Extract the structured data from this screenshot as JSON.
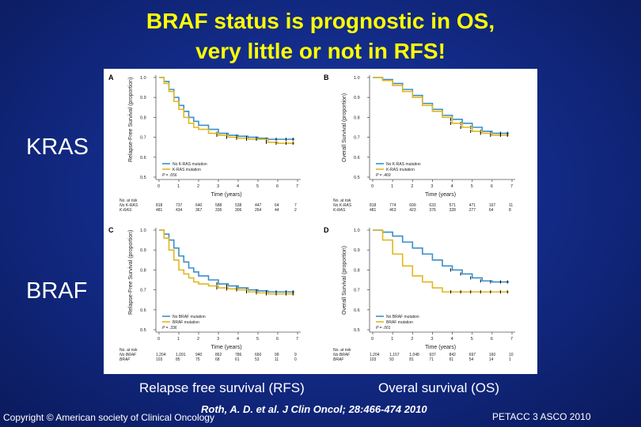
{
  "slide": {
    "title_line1": "BRAF status is prognostic in OS,",
    "title_line2": "very little or not in RFS!",
    "row_label_kras": "KRAS",
    "row_label_braf": "BRAF",
    "caption_rfs": "Relapse free survival (RFS)",
    "caption_os": "Overal survival (OS)",
    "citation": "Roth, A. D. et al. J Clin Oncol; 28:466-474 2010",
    "copyright": "Copyright © American society of Clinical Oncology",
    "footer_right": "PETACC 3 ASCO 2010",
    "colors": {
      "background": "#132c8a",
      "title": "#ffff00",
      "wild_type_curve": "#3a8fc8",
      "mutation_curve": "#e0b820",
      "censor_marks": "#000000"
    }
  },
  "chart_data": [
    {
      "panel": "A",
      "type": "line",
      "xlabel": "Time (years)",
      "ylabel": "Relapse-Free Survival (proportion)",
      "xlim": [
        0,
        7
      ],
      "ylim": [
        0.5,
        1.0
      ],
      "x_ticks": [
        "0",
        "1",
        "2",
        "3",
        "4",
        "5",
        "6",
        "7"
      ],
      "y_ticks": [
        "0.5",
        "0.6",
        "0.7",
        "0.8",
        "0.9",
        "1.0"
      ],
      "p_value": "P = .656",
      "series": [
        {
          "name": "No K-RAS mutation",
          "color": "#3a8fc8",
          "x": [
            0,
            0.25,
            0.5,
            0.75,
            1.0,
            1.25,
            1.5,
            1.75,
            2.0,
            2.5,
            3.0,
            3.5,
            4.0,
            4.5,
            5.0,
            5.5,
            6.0,
            6.5,
            6.85
          ],
          "y": [
            1.0,
            0.98,
            0.94,
            0.9,
            0.86,
            0.83,
            0.8,
            0.78,
            0.76,
            0.74,
            0.72,
            0.71,
            0.705,
            0.7,
            0.695,
            0.69,
            0.69,
            0.69,
            0.69
          ]
        },
        {
          "name": "K-RAS mutation",
          "color": "#e0b820",
          "x": [
            0,
            0.25,
            0.5,
            0.75,
            1.0,
            1.25,
            1.5,
            1.75,
            2.0,
            2.5,
            3.0,
            3.5,
            4.0,
            4.5,
            5.0,
            5.5,
            6.0,
            6.5,
            6.85
          ],
          "y": [
            1.0,
            0.97,
            0.93,
            0.88,
            0.84,
            0.8,
            0.77,
            0.75,
            0.74,
            0.72,
            0.71,
            0.7,
            0.695,
            0.69,
            0.69,
            0.675,
            0.67,
            0.67,
            0.67
          ]
        }
      ],
      "at_risk": {
        "header": "No. at risk",
        "rows": [
          {
            "label": "No K-RAS",
            "values": [
              "818",
              "737",
              "640",
              "588",
              "538",
              "447",
              "64",
              "7"
            ]
          },
          {
            "label": "K-RAS",
            "values": [
              "481",
              "434",
              "367",
              "336",
              "306",
              "264",
              "44",
              "2"
            ]
          }
        ]
      }
    },
    {
      "panel": "B",
      "type": "line",
      "xlabel": "Time (years)",
      "ylabel": "Overall Survival (proportion)",
      "xlim": [
        0,
        7
      ],
      "ylim": [
        0.5,
        1.0
      ],
      "x_ticks": [
        "0",
        "1",
        "2",
        "3",
        "4",
        "5",
        "6",
        "7"
      ],
      "y_ticks": [
        "0.5",
        "0.6",
        "0.7",
        "0.8",
        "0.9",
        "1.0"
      ],
      "p_value": "P = .469",
      "series": [
        {
          "name": "No K-RAS mutation",
          "color": "#3a8fc8",
          "x": [
            0,
            0.5,
            1.0,
            1.5,
            2.0,
            2.5,
            3.0,
            3.5,
            4.0,
            4.5,
            5.0,
            5.5,
            6.0,
            6.5,
            6.85
          ],
          "y": [
            1.0,
            0.99,
            0.97,
            0.94,
            0.91,
            0.87,
            0.84,
            0.81,
            0.79,
            0.77,
            0.75,
            0.73,
            0.72,
            0.72,
            0.72
          ]
        },
        {
          "name": "K-RAS mutation",
          "color": "#e0b820",
          "x": [
            0,
            0.5,
            1.0,
            1.5,
            2.0,
            2.5,
            3.0,
            3.5,
            4.0,
            4.5,
            5.0,
            5.5,
            6.0,
            6.5,
            6.85
          ],
          "y": [
            1.0,
            0.985,
            0.96,
            0.93,
            0.9,
            0.86,
            0.83,
            0.8,
            0.77,
            0.75,
            0.73,
            0.72,
            0.71,
            0.71,
            0.71
          ]
        }
      ],
      "at_risk": {
        "header": "No. at risk",
        "rows": [
          {
            "label": "No K-RAS",
            "values": [
              "818",
              "774",
              "699",
              "633",
              "571",
              "471",
              "167",
              "11"
            ]
          },
          {
            "label": "K-RAS",
            "values": [
              "481",
              "463",
              "423",
              "376",
              "328",
              "277",
              "64",
              "8"
            ]
          }
        ]
      }
    },
    {
      "panel": "C",
      "type": "line",
      "xlabel": "Time (years)",
      "ylabel": "Relapse-Free Survival (proportion)",
      "xlim": [
        0,
        7
      ],
      "ylim": [
        0.5,
        1.0
      ],
      "x_ticks": [
        "0",
        "1",
        "2",
        "3",
        "4",
        "5",
        "6",
        "7"
      ],
      "y_ticks": [
        "0.5",
        "0.6",
        "0.7",
        "0.8",
        "0.9",
        "1.0"
      ],
      "p_value": "P = .336",
      "series": [
        {
          "name": "No BRAF mutation",
          "color": "#3a8fc8",
          "x": [
            0,
            0.25,
            0.5,
            0.75,
            1.0,
            1.25,
            1.5,
            1.75,
            2.0,
            2.5,
            3.0,
            3.5,
            4.0,
            4.5,
            5.0,
            5.5,
            6.0,
            6.5,
            6.85
          ],
          "y": [
            1.0,
            0.98,
            0.95,
            0.91,
            0.87,
            0.84,
            0.81,
            0.79,
            0.77,
            0.75,
            0.73,
            0.72,
            0.71,
            0.7,
            0.695,
            0.69,
            0.69,
            0.69,
            0.69
          ]
        },
        {
          "name": "BRAF mutation",
          "color": "#e0b820",
          "x": [
            0,
            0.25,
            0.5,
            0.75,
            1.0,
            1.25,
            1.5,
            1.75,
            2.0,
            2.5,
            3.0,
            3.5,
            4.0,
            4.5,
            5.0,
            5.5,
            6.0,
            6.5,
            6.85
          ],
          "y": [
            1.0,
            0.96,
            0.9,
            0.85,
            0.8,
            0.78,
            0.76,
            0.74,
            0.73,
            0.72,
            0.71,
            0.705,
            0.7,
            0.69,
            0.685,
            0.68,
            0.68,
            0.68,
            0.68
          ]
        }
      ],
      "at_risk": {
        "header": "No. at risk",
        "rows": [
          {
            "label": "No BRAF",
            "values": [
              "1,204",
              "1,091",
              "940",
              "862",
              "786",
              "660",
              "99",
              "9"
            ]
          },
          {
            "label": "BRAF",
            "values": [
              "103",
              "85",
              "75",
              "68",
              "61",
              "53",
              "11",
              "0"
            ]
          }
        ]
      }
    },
    {
      "panel": "D",
      "type": "line",
      "xlabel": "Time (years)",
      "ylabel": "Overall Survival (proportion)",
      "xlim": [
        0,
        7
      ],
      "ylim": [
        0.5,
        1.0
      ],
      "x_ticks": [
        "0",
        "1",
        "2",
        "3",
        "4",
        "5",
        "6",
        "7"
      ],
      "y_ticks": [
        "0.5",
        "0.6",
        "0.7",
        "0.8",
        "0.9",
        "1.0"
      ],
      "p_value": "P = .001",
      "series": [
        {
          "name": "No BRAF mutation",
          "color": "#3a8fc8",
          "x": [
            0,
            0.5,
            1.0,
            1.5,
            2.0,
            2.5,
            3.0,
            3.5,
            4.0,
            4.5,
            5.0,
            5.5,
            6.0,
            6.5,
            6.85
          ],
          "y": [
            1.0,
            0.99,
            0.97,
            0.94,
            0.91,
            0.88,
            0.85,
            0.82,
            0.8,
            0.78,
            0.76,
            0.745,
            0.74,
            0.74,
            0.74
          ]
        },
        {
          "name": "BRAF mutation",
          "color": "#e0b820",
          "x": [
            0,
            0.5,
            1.0,
            1.5,
            2.0,
            2.5,
            3.0,
            3.5,
            4.0,
            4.5,
            5.0,
            5.5,
            6.0,
            6.5,
            6.85
          ],
          "y": [
            1.0,
            0.95,
            0.88,
            0.82,
            0.77,
            0.74,
            0.71,
            0.69,
            0.69,
            0.69,
            0.69,
            0.69,
            0.69,
            0.69,
            0.69
          ]
        }
      ],
      "at_risk": {
        "header": "No. at risk",
        "rows": [
          {
            "label": "No BRAF",
            "values": [
              "1,204",
              "1,157",
              "1,048",
              "937",
              "842",
              "697",
              "160",
              "10"
            ]
          },
          {
            "label": "BRAF",
            "values": [
              "103",
              "93",
              "81",
              "71",
              "61",
              "54",
              "14",
              "1"
            ]
          }
        ]
      }
    }
  ]
}
